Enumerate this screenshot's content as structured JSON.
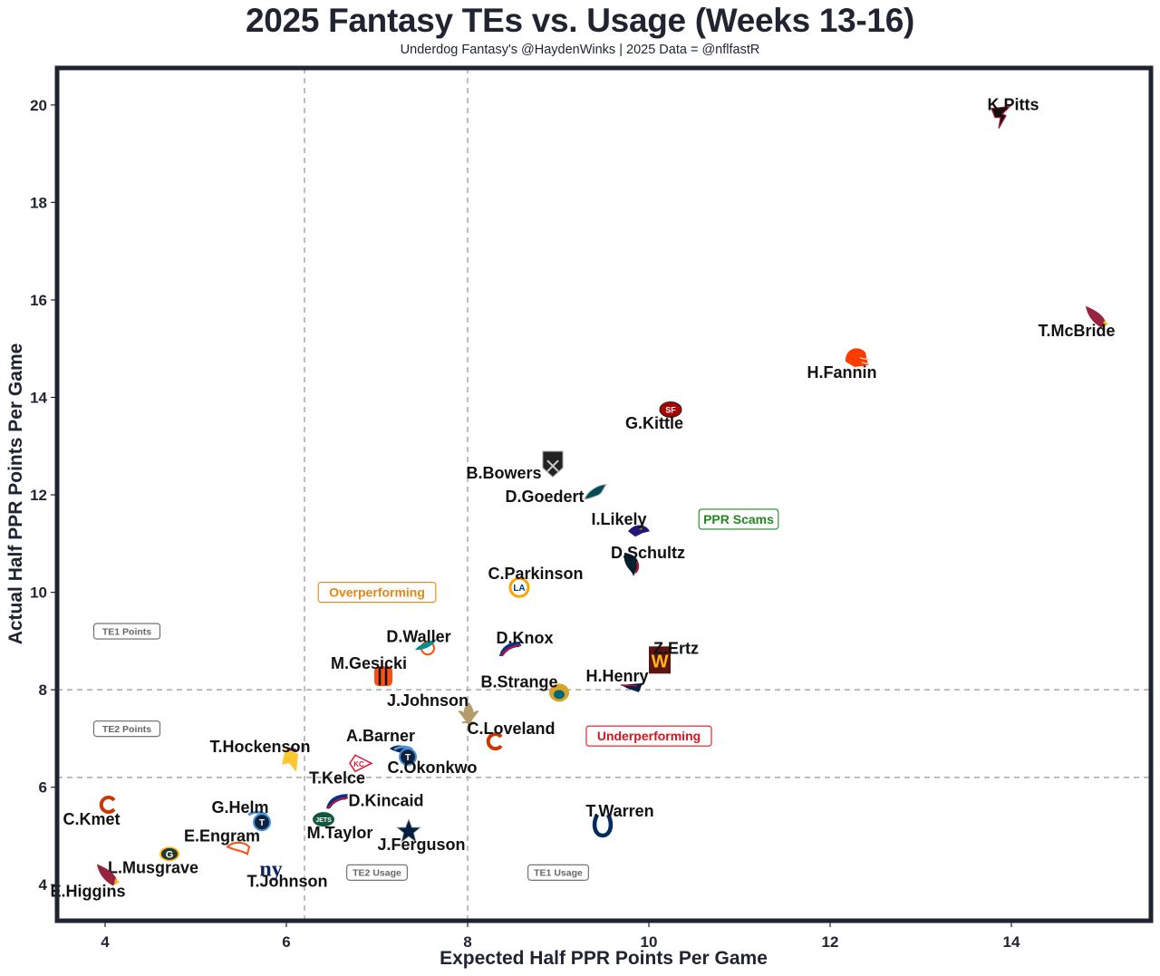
{
  "header": {
    "title": "2025 Fantasy TEs vs. Usage (Weeks 13-16)",
    "subtitle": "Underdog Fantasy's @HaydenWinks | 2025 Data = @nflfastR"
  },
  "chart_data": {
    "type": "scatter",
    "title": "2025 Fantasy TEs vs. Usage (Weeks 13-16)",
    "subtitle": "Underdog Fantasy's @HaydenWinks | 2025 Data = @nflfastR",
    "xlabel": "Expected Half PPR Points Per Game",
    "ylabel": "Actual Half PPR Points Per Game",
    "xlim": [
      3.47,
      15.54
    ],
    "ylim": [
      3.26,
      20.76
    ],
    "xticks": [
      4,
      6,
      8,
      10,
      12,
      14
    ],
    "yticks": [
      4,
      6,
      8,
      10,
      12,
      14,
      16,
      18,
      20
    ],
    "grid": false,
    "reference_lines": {
      "vertical": [
        6.2,
        8.0
      ],
      "horizontal": [
        6.2,
        8.0
      ]
    },
    "points": [
      {
        "name": "K.Pitts",
        "team": "ATL",
        "x": 13.88,
        "y": 19.78,
        "color": "#a71930",
        "icon": "falcon-icon"
      },
      {
        "name": "T.McBride",
        "team": "ARI",
        "x": 14.94,
        "y": 15.65,
        "color": "#97233f",
        "icon": "cardinal-icon"
      },
      {
        "name": "H.Fannin",
        "team": "CLE",
        "x": 12.29,
        "y": 14.81,
        "color": "#ff3c00",
        "icon": "helmet-icon"
      },
      {
        "name": "G.Kittle",
        "team": "SF",
        "x": 10.24,
        "y": 13.75,
        "color": "#aa0000",
        "icon": "sf-oval-icon"
      },
      {
        "name": "B.Bowers",
        "team": "LV",
        "x": 8.94,
        "y": 12.63,
        "color": "#1a1a1a",
        "icon": "shield-icon"
      },
      {
        "name": "D.Goedert",
        "team": "PHI",
        "x": 9.41,
        "y": 12.06,
        "color": "#004c54",
        "icon": "eagle-icon"
      },
      {
        "name": "I.Likely",
        "team": "BAL",
        "x": 9.89,
        "y": 11.29,
        "color": "#241773",
        "icon": "raven-icon"
      },
      {
        "name": "D.Schultz",
        "team": "HOU",
        "x": 9.81,
        "y": 10.59,
        "color": "#03202f",
        "icon": "bull-icon"
      },
      {
        "name": "C.Parkinson",
        "team": "LAR",
        "x": 8.57,
        "y": 10.1,
        "color": "#ffa300",
        "icon": "la-icon"
      },
      {
        "name": "D.Waller",
        "team": "MIA",
        "x": 7.54,
        "y": 8.89,
        "color": "#008e97",
        "icon": "dolphin-icon"
      },
      {
        "name": "D.Knox",
        "team": "BUF",
        "x": 8.47,
        "y": 8.84,
        "color": "#00338d",
        "icon": "bison-icon"
      },
      {
        "name": "Z.Ertz",
        "team": "WAS",
        "x": 10.12,
        "y": 8.61,
        "color": "#5a1414",
        "icon": "w-icon"
      },
      {
        "name": "M.Gesicki",
        "team": "CIN",
        "x": 7.07,
        "y": 8.28,
        "color": "#fb4f14",
        "icon": "b-stripes-icon"
      },
      {
        "name": "H.Henry",
        "team": "NE",
        "x": 9.81,
        "y": 8.06,
        "color": "#002244",
        "icon": "patriot-icon"
      },
      {
        "name": "B.Strange",
        "team": "JAX",
        "x": 9.01,
        "y": 7.94,
        "color": "#006778",
        "icon": "jaguar-icon"
      },
      {
        "name": "J.Johnson",
        "team": "NO",
        "x": 8.01,
        "y": 7.48,
        "color": "#b39b6a",
        "icon": "fleur-de-lis-icon"
      },
      {
        "name": "C.Loveland",
        "team": "CHI",
        "x": 8.3,
        "y": 6.94,
        "color": "#c83803",
        "icon": "c-icon"
      },
      {
        "name": "A.Barner",
        "team": "SEA",
        "x": 7.26,
        "y": 6.72,
        "color": "#002244",
        "icon": "seahawk-icon"
      },
      {
        "name": "C.Okonkwo",
        "team": "TEN",
        "x": 7.31,
        "y": 6.66,
        "color": "#0c2340",
        "icon": "titans-icon"
      },
      {
        "name": "T.Hockenson",
        "team": "MIN",
        "x": 6.05,
        "y": 6.57,
        "color": "#ffc62f",
        "icon": "viking-icon"
      },
      {
        "name": "T.Kelce",
        "team": "KC",
        "x": 6.82,
        "y": 6.49,
        "color": "#e31837",
        "icon": "arrowhead-icon"
      },
      {
        "name": "D.Kincaid",
        "team": "BUF",
        "x": 6.56,
        "y": 5.71,
        "color": "#00338d",
        "icon": "bison-icon"
      },
      {
        "name": "C.Kmet",
        "team": "CHI",
        "x": 4.03,
        "y": 5.64,
        "color": "#c83803",
        "icon": "c-icon"
      },
      {
        "name": "M.Taylor",
        "team": "NYJ",
        "x": 6.41,
        "y": 5.34,
        "color": "#125740",
        "icon": "jets-icon"
      },
      {
        "name": "G.Helm",
        "team": "TEN",
        "x": 5.7,
        "y": 5.32,
        "color": "#0c2340",
        "icon": "titans-icon"
      },
      {
        "name": "T.Warren",
        "team": "IND",
        "x": 9.49,
        "y": 5.25,
        "color": "#002c5f",
        "icon": "horseshoe-icon"
      },
      {
        "name": "J.Ferguson",
        "team": "DAL",
        "x": 7.35,
        "y": 5.1,
        "color": "#041e42",
        "icon": "star-icon"
      },
      {
        "name": "E.Engram",
        "team": "DEN",
        "x": 5.47,
        "y": 4.74,
        "color": "#fb4f14",
        "icon": "bronco-icon"
      },
      {
        "name": "L.Musgrave",
        "team": "GB",
        "x": 4.71,
        "y": 4.63,
        "color": "#203731",
        "icon": "g-icon"
      },
      {
        "name": "T.Johnson",
        "team": "NYG",
        "x": 5.83,
        "y": 4.37,
        "color": "#0b2265",
        "icon": "ny-icon"
      },
      {
        "name": "E.Higgins",
        "team": "ARI",
        "x": 4.03,
        "y": 4.2,
        "color": "#97233f",
        "icon": "cardinal-icon"
      }
    ],
    "annotations": [
      {
        "text": "PPR Scams",
        "x": 10.99,
        "y": 11.5,
        "color": "#1e8a1e",
        "style": "large"
      },
      {
        "text": "Overperforming",
        "x": 7.0,
        "y": 10.0,
        "color": "#e8870f",
        "style": "large"
      },
      {
        "text": "Underperforming",
        "x": 10.0,
        "y": 7.05,
        "color": "#e0101e",
        "style": "large"
      },
      {
        "text": "TE1 Points",
        "x": 4.24,
        "y": 9.2,
        "color": "#666666",
        "style": "small"
      },
      {
        "text": "TE2 Points",
        "x": 4.24,
        "y": 7.2,
        "color": "#666666",
        "style": "small"
      },
      {
        "text": "TE2 Usage",
        "x": 7.0,
        "y": 4.25,
        "color": "#666666",
        "style": "small"
      },
      {
        "text": "TE1 Usage",
        "x": 9.0,
        "y": 4.25,
        "color": "#666666",
        "style": "small"
      }
    ]
  },
  "colors": {
    "frame": "#1f2430",
    "reference_line": "#a8a8a8",
    "text": "#1f2430"
  }
}
